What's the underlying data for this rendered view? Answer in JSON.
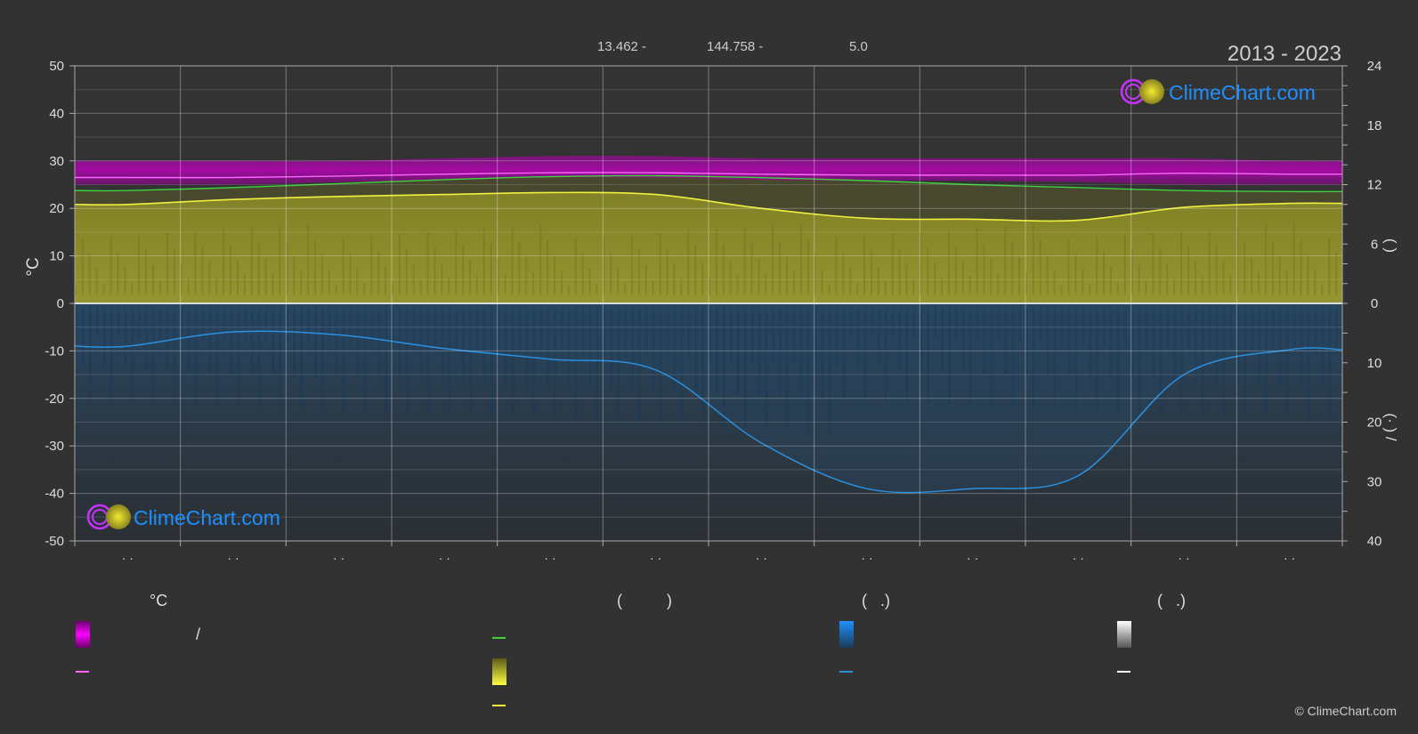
{
  "header": {
    "coordinates": [
      "13.462 -",
      "144.758 -",
      "5.0"
    ],
    "period": "2013 - 2023"
  },
  "brand": {
    "name": "ClimeChart.com",
    "copyright": "© ClimeChart.com",
    "colors": {
      "ring": "#c832ff",
      "sun": "#d8d020",
      "text": "#1e90ff"
    }
  },
  "chart_data": {
    "type": "area",
    "ylabel_left": "°C",
    "ylabel_right_upper": "(    )",
    "ylabel_right_lower": "(·    )   /",
    "left_axis": {
      "range": [
        -50,
        50
      ],
      "ticks": [
        "50",
        "40",
        "30",
        "20",
        "10",
        "0",
        "-10",
        "-20",
        "-30",
        "-40",
        "-50"
      ]
    },
    "right_axis_upper": {
      "range": [
        0,
        24
      ],
      "ticks": [
        "24",
        "18",
        "12",
        "6",
        "0"
      ]
    },
    "right_axis_lower": {
      "range": [
        0,
        40
      ],
      "ticks": [
        "10",
        "20",
        "30",
        "40"
      ]
    },
    "x_tick_labels": [
      "· ·",
      "· ·",
      "· ·",
      "· ·",
      "· ·",
      "· ·",
      "· ·",
      "· ·",
      "· ·",
      "· ·",
      "· ·",
      "· ·"
    ],
    "months": 12,
    "grid": true,
    "series": [
      {
        "key": "max_temp_band",
        "axis": "temp",
        "kind": "band",
        "color": "#e000e0",
        "low": [
          25,
          25,
          25.5,
          26,
          26.5,
          26.5,
          26,
          25.8,
          25.8,
          25.5,
          25,
          25
        ],
        "high": [
          30,
          30,
          30,
          30.5,
          31,
          31,
          30.5,
          30.5,
          30.5,
          30.5,
          30.5,
          30
        ]
      },
      {
        "key": "avg_max_temp",
        "axis": "temp",
        "kind": "line",
        "color": "#ff66ff",
        "values": [
          26.5,
          26.5,
          26.8,
          27.2,
          27.5,
          27.5,
          27.2,
          27.0,
          27.0,
          27.0,
          27.4,
          27.2
        ]
      },
      {
        "key": "daylight",
        "axis": "sun",
        "kind": "line",
        "color": "#40d040",
        "values": [
          11.4,
          11.7,
          12.1,
          12.5,
          12.8,
          12.9,
          12.7,
          12.4,
          12.0,
          11.7,
          11.4,
          11.3
        ]
      },
      {
        "key": "sunshine",
        "axis": "sun",
        "kind": "area",
        "color": "#9a9a2a",
        "values": [
          10,
          10.5,
          10.8,
          11,
          11.2,
          11,
          9.6,
          8.6,
          8.5,
          8.4,
          9.7,
          10.1
        ]
      },
      {
        "key": "sunshine_line",
        "axis": "sun",
        "kind": "line",
        "color": "#f0f040",
        "values": [
          10,
          10.5,
          10.8,
          11,
          11.2,
          11,
          9.6,
          8.6,
          8.5,
          8.4,
          9.7,
          10.1
        ]
      },
      {
        "key": "precipitation",
        "axis": "rain",
        "kind": "area",
        "color": "#1e5f96",
        "values": [
          7.2,
          4.8,
          5.3,
          7.6,
          9.4,
          11.2,
          23.5,
          31.2,
          31.2,
          29,
          12,
          7.8
        ]
      },
      {
        "key": "precipitation_line",
        "axis": "rain",
        "kind": "line",
        "color": "#2a90e0",
        "values": [
          7.2,
          4.8,
          5.3,
          7.6,
          9.4,
          11.2,
          23.5,
          31.2,
          31.2,
          29,
          12,
          7.8
        ]
      }
    ]
  },
  "legend": {
    "col1_title": "°C",
    "col1_row1": "/",
    "col2_title": "(          )",
    "col3_title": "(   .)",
    "col4_title": "(   .)",
    "colors": {
      "max_band": "#e000e0",
      "max_line": "#ff66ff",
      "daylight": "#40d040",
      "sunshine_swatch": "#e8e830",
      "sunshine_line": "#f0f040",
      "rain_swatch": "#1e78d0",
      "rain_line": "#2a90e0",
      "snow_swatch": "#eeeeee",
      "snow_line": "#ffffff"
    }
  }
}
